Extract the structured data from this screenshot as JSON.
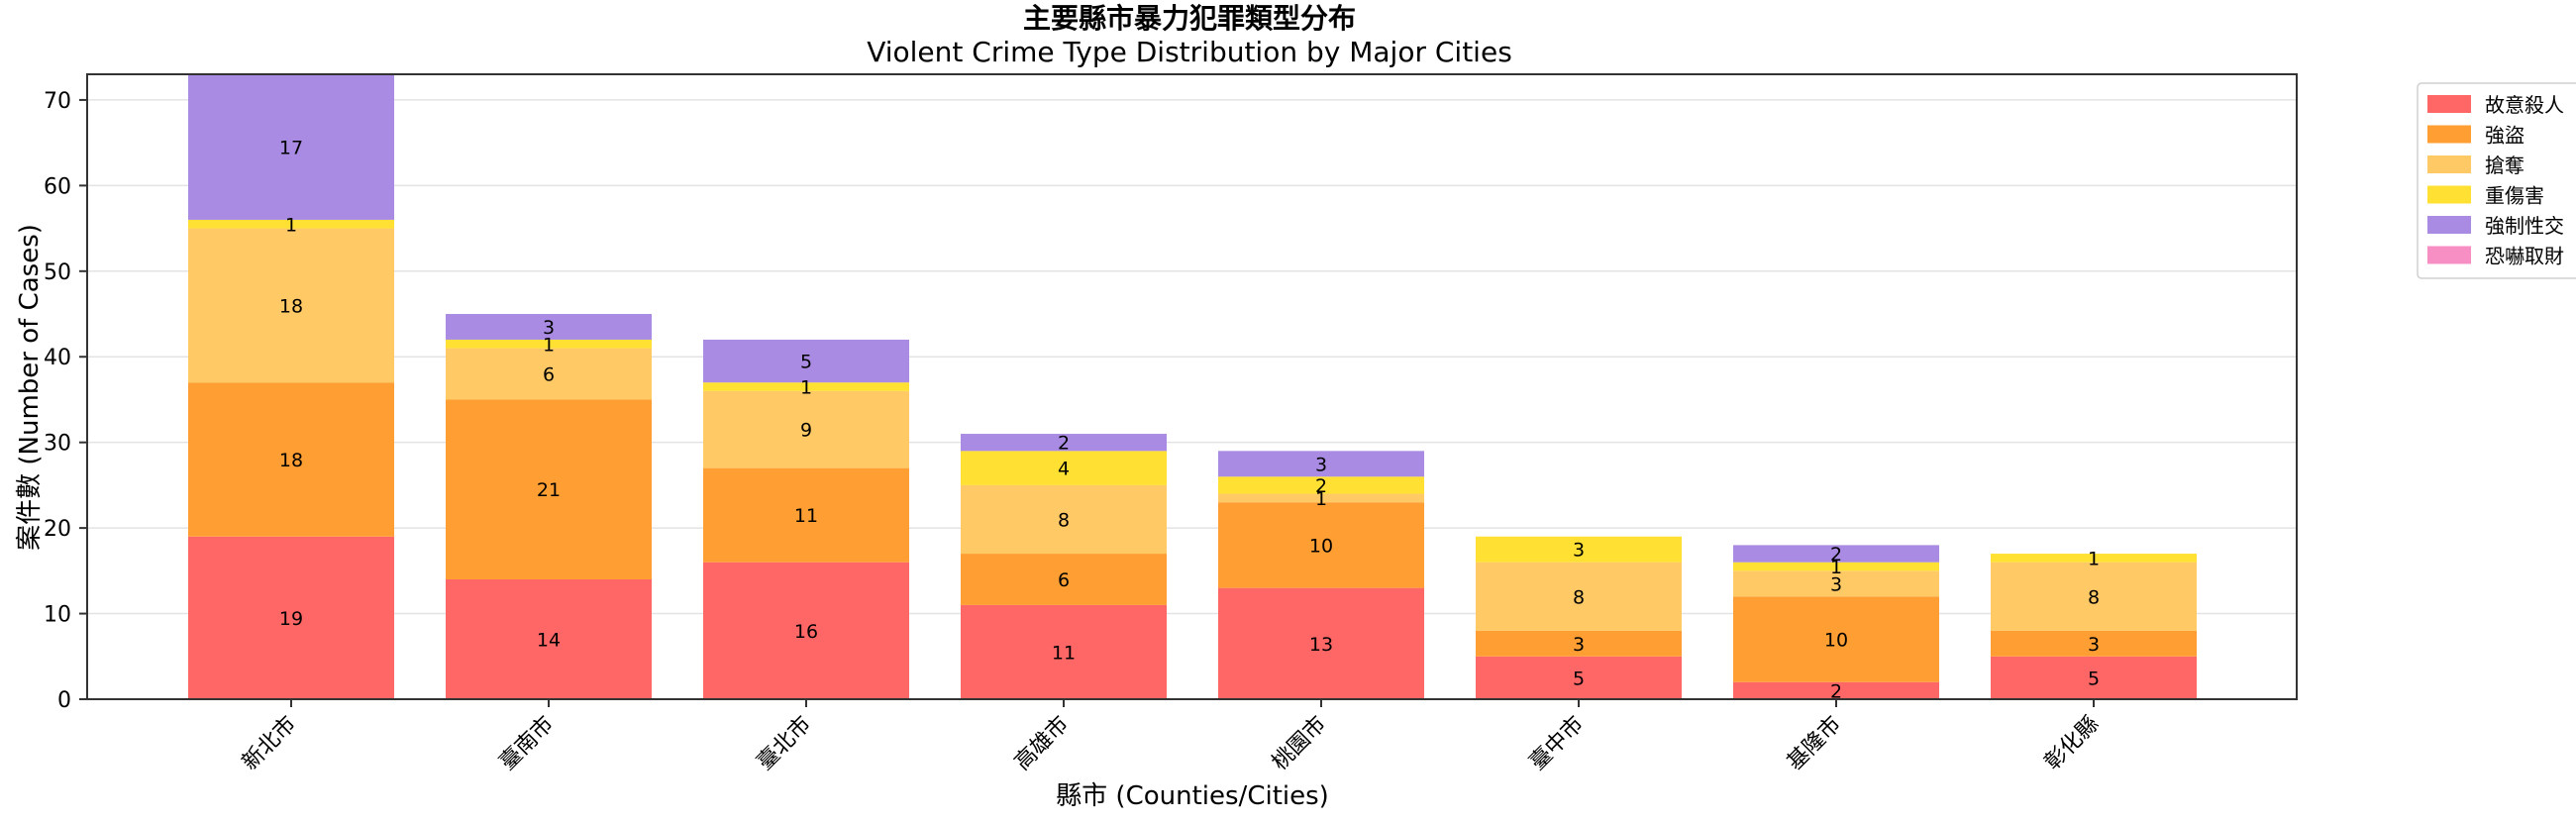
{
  "chart_data": {
    "type": "bar",
    "stacked": true,
    "title": "主要縣市暴力犯罪類型分布",
    "subtitle": "Violent Crime Type Distribution by Major Cities",
    "xlabel": "縣市 (Counties/Cities)",
    "ylabel": "案件數 (Number of Cases)",
    "ylim": [
      0,
      73
    ],
    "yticks": [
      0,
      10,
      20,
      30,
      40,
      50,
      60,
      70
    ],
    "grid": "y",
    "legend_position": "outside-top-right",
    "categories": [
      "新北市",
      "臺南市",
      "臺北市",
      "高雄市",
      "桃園市",
      "臺中市",
      "基隆市",
      "彰化縣"
    ],
    "series": [
      {
        "name": "故意殺人",
        "color": "#ff6666",
        "values": [
          19,
          14,
          16,
          11,
          13,
          5,
          2,
          5
        ]
      },
      {
        "name": "強盜",
        "color": "#ff9f33",
        "values": [
          18,
          21,
          11,
          6,
          10,
          3,
          10,
          3
        ]
      },
      {
        "name": "搶奪",
        "color": "#ffc966",
        "values": [
          18,
          6,
          9,
          8,
          1,
          8,
          3,
          8
        ]
      },
      {
        "name": "重傷害",
        "color": "#ffe033",
        "values": [
          1,
          1,
          1,
          4,
          2,
          3,
          1,
          1
        ]
      },
      {
        "name": "強制性交",
        "color": "#a98be3",
        "values": [
          17,
          3,
          5,
          2,
          3,
          0,
          2,
          0
        ]
      },
      {
        "name": "恐嚇取財",
        "color": "#f78fc4",
        "values": [
          0,
          0,
          0,
          0,
          0,
          0,
          0,
          0
        ]
      }
    ]
  }
}
